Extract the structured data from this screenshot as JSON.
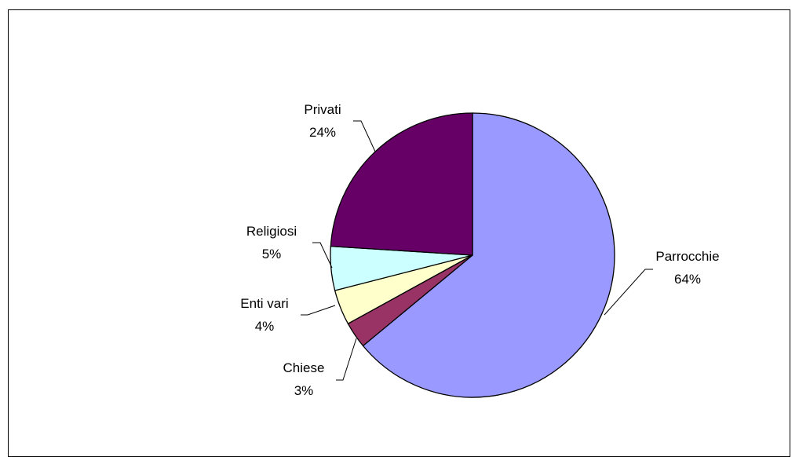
{
  "chart_data": {
    "type": "pie",
    "title": "",
    "slices": [
      {
        "label": "Parrocchie",
        "value": 64,
        "percent_label": "64%",
        "color": "#9999ff"
      },
      {
        "label": "Chiese",
        "value": 3,
        "percent_label": "3%",
        "color": "#993366"
      },
      {
        "label": "Enti vari",
        "value": 4,
        "percent_label": "4%",
        "color": "#ffffcc"
      },
      {
        "label": "Religiosi",
        "value": 5,
        "percent_label": "5%",
        "color": "#ccffff"
      },
      {
        "label": "Privati",
        "value": 24,
        "percent_label": "24%",
        "color": "#660066"
      }
    ],
    "start_angle": "12 o'clock",
    "direction": "clockwise",
    "legend": "none"
  }
}
